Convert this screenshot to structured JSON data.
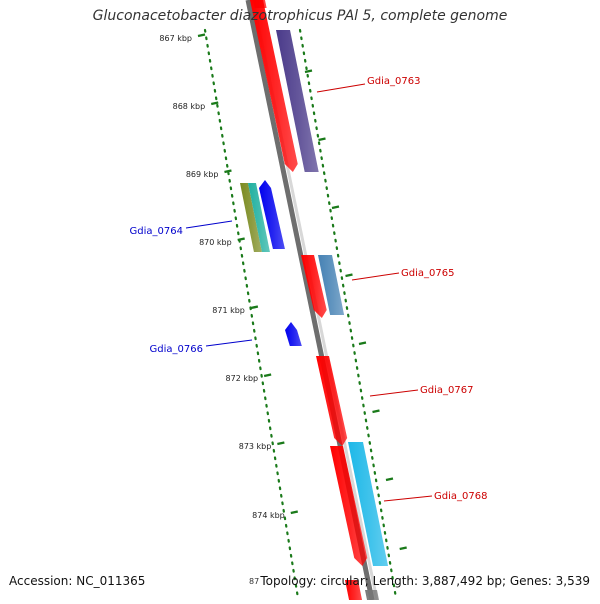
{
  "title": "Gluconacetobacter diazotrophicus PAl 5, complete genome",
  "footer": {
    "accession": "Accession: NC_011365",
    "topology": "Topology: circular; Length: 3,887,492 bp; Genes: 3,539",
    "partial_tick": "87"
  },
  "colors": {
    "tick": "#1a7a1a",
    "backbone": "#888888",
    "label_forward": "#cc0000",
    "label_reverse": "#0000cc",
    "gene_red": "#ff0000",
    "gene_purple": "#4a3a8a",
    "gene_steel": "#4682b4",
    "gene_cyan": "#1eb8e8",
    "gene_blue": "#0000ee",
    "gene_olive": "#7a8a20",
    "gene_teal": "#20b0a0"
  },
  "scale": {
    "unit": "kbp",
    "ticks": [
      "867 kbp",
      "868 kbp",
      "869 kbp",
      "870 kbp",
      "871 kbp",
      "872 kbp",
      "873 kbp",
      "874 kbp"
    ]
  },
  "genes": [
    {
      "label": "Gdia_0763",
      "strand": "forward"
    },
    {
      "label": "Gdia_0764",
      "strand": "reverse"
    },
    {
      "label": "Gdia_0765",
      "strand": "forward"
    },
    {
      "label": "Gdia_0766",
      "strand": "reverse"
    },
    {
      "label": "Gdia_0767",
      "strand": "forward"
    },
    {
      "label": "Gdia_0768",
      "strand": "forward"
    }
  ]
}
